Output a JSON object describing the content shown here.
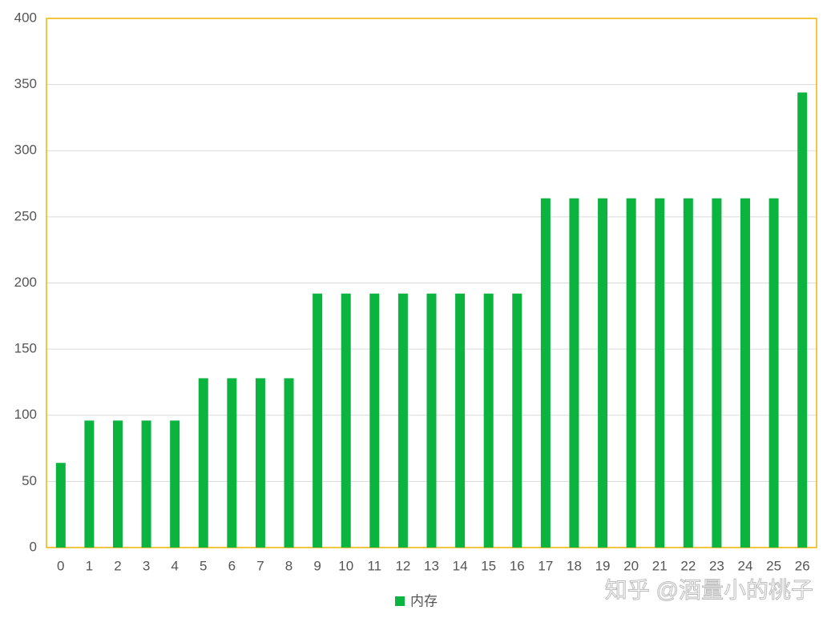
{
  "chart_data": {
    "type": "bar",
    "categories": [
      "0",
      "1",
      "2",
      "3",
      "4",
      "5",
      "6",
      "7",
      "8",
      "9",
      "10",
      "11",
      "12",
      "13",
      "14",
      "15",
      "16",
      "17",
      "18",
      "19",
      "20",
      "21",
      "22",
      "23",
      "24",
      "25",
      "26"
    ],
    "series": [
      {
        "name": "内存",
        "color": "#0bb33f",
        "values": [
          64,
          96,
          96,
          96,
          96,
          128,
          128,
          128,
          128,
          192,
          192,
          192,
          192,
          192,
          192,
          192,
          192,
          264,
          264,
          264,
          264,
          264,
          264,
          264,
          264,
          264,
          344
        ]
      }
    ],
    "ylim": [
      0,
      400
    ],
    "yticks": [
      0,
      50,
      100,
      150,
      200,
      250,
      300,
      350,
      400
    ],
    "grid": true,
    "legend": "bottom",
    "border_color": "#f0b400",
    "watermark": "知乎 @酒量小的桃子"
  }
}
